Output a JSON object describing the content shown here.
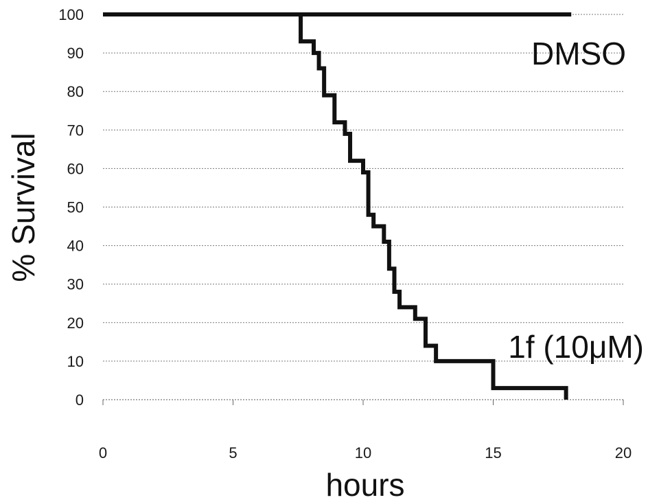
{
  "chart_data": {
    "type": "line",
    "title": "",
    "xlabel": "hours",
    "ylabel": "% Survival",
    "xlim": [
      0,
      20
    ],
    "ylim": [
      0,
      100
    ],
    "x_ticks": [
      0,
      5,
      10,
      15,
      20
    ],
    "x_tick_labels": [
      "0",
      "5",
      "10",
      "15",
      "20"
    ],
    "y_ticks": [
      0,
      10,
      20,
      30,
      40,
      50,
      60,
      70,
      80,
      90,
      100
    ],
    "y_tick_labels": [
      "0",
      "10",
      "20",
      "30",
      "40",
      "50",
      "60",
      "70",
      "80",
      "90",
      "100"
    ],
    "grid": "horizontal, dotted",
    "line_style": "step",
    "series": [
      {
        "name": "DMSO",
        "x": [
          0,
          18
        ],
        "y": [
          100,
          100
        ]
      },
      {
        "name": "1f (10μM)",
        "x": [
          0,
          7.6,
          8.1,
          8.3,
          8.5,
          8.9,
          9.3,
          9.5,
          10.0,
          10.2,
          10.4,
          10.8,
          11.0,
          11.2,
          11.4,
          12.0,
          12.4,
          12.8,
          15.0,
          17.8
        ],
        "y": [
          100,
          93,
          90,
          86,
          79,
          72,
          69,
          62,
          59,
          48,
          45,
          41,
          34,
          28,
          24,
          21,
          14,
          10,
          3,
          0
        ]
      }
    ],
    "annotations": [
      {
        "text": "DMSO",
        "series": "DMSO"
      },
      {
        "text": "1f (10μM)",
        "series": "1f (10μM)"
      }
    ]
  }
}
